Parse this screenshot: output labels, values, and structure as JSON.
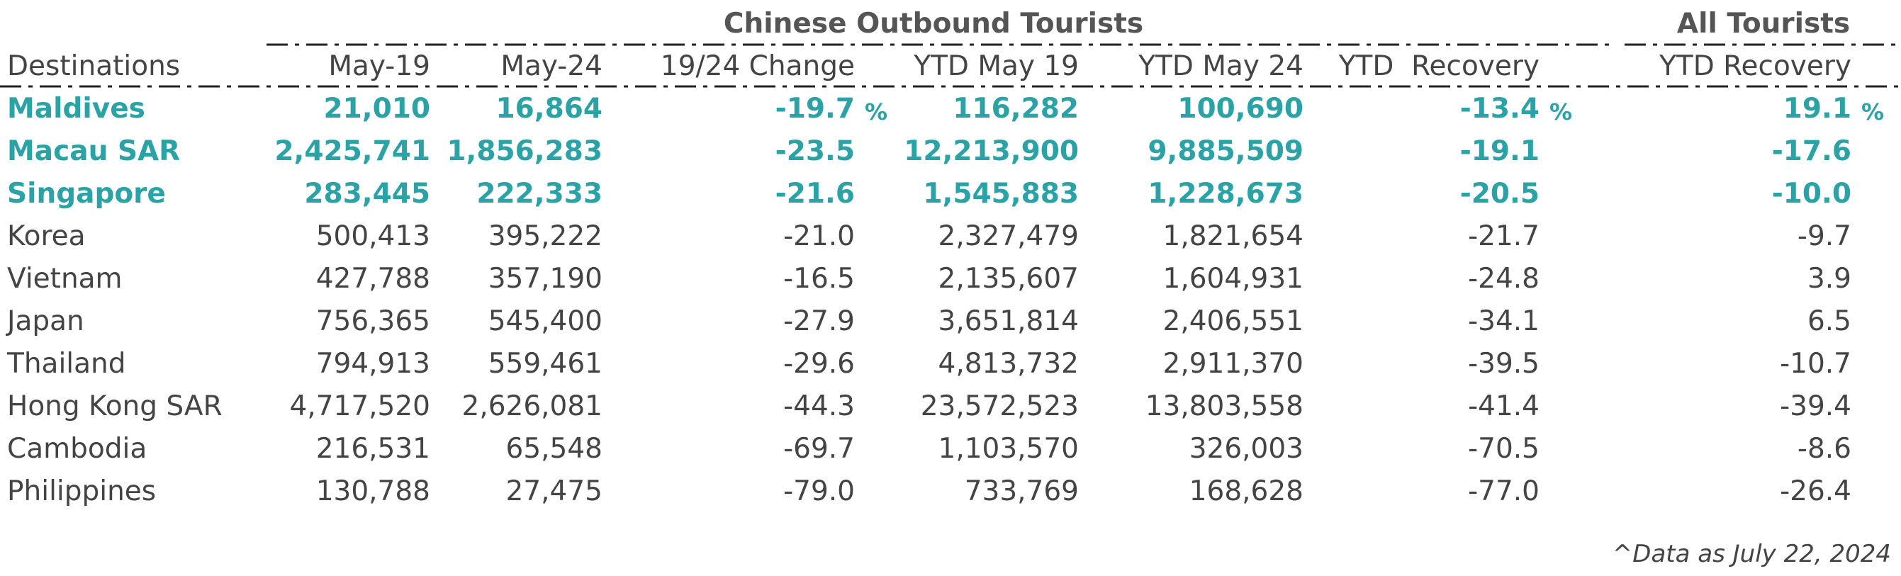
{
  "header": {
    "groups": [
      "Chinese Outbound Tourists",
      "All Tourists"
    ],
    "columns": [
      "Destinations",
      "May-19",
      "May-24",
      "19/24 Change",
      "YTD May 19",
      "YTD May 24",
      "YTD  Recovery",
      "YTD Recovery"
    ]
  },
  "table": {
    "rows": [
      {
        "highlight": true,
        "cells": [
          "Maldives",
          "21,010",
          "16,864",
          {
            "value": "-19.7",
            "unit": "%"
          },
          "116,282",
          "100,690",
          {
            "value": "-13.4",
            "unit": "%"
          },
          {
            "value": "19.1",
            "unit": "%"
          }
        ]
      },
      {
        "highlight": true,
        "cells": [
          "Macau SAR",
          "2,425,741",
          "1,856,283",
          "-23.5",
          "12,213,900",
          "9,885,509",
          "-19.1",
          "-17.6"
        ]
      },
      {
        "highlight": true,
        "cells": [
          "Singapore",
          "283,445",
          "222,333",
          "-21.6",
          "1,545,883",
          "1,228,673",
          "-20.5",
          "-10.0"
        ]
      },
      {
        "highlight": false,
        "cells": [
          "Korea",
          "500,413",
          "395,222",
          "-21.0",
          "2,327,479",
          "1,821,654",
          "-21.7",
          "-9.7"
        ]
      },
      {
        "highlight": false,
        "cells": [
          "Vietnam",
          "427,788",
          "357,190",
          "-16.5",
          "2,135,607",
          "1,604,931",
          "-24.8",
          "3.9"
        ]
      },
      {
        "highlight": false,
        "cells": [
          "Japan",
          "756,365",
          "545,400",
          "-27.9",
          "3,651,814",
          "2,406,551",
          "-34.1",
          "6.5"
        ]
      },
      {
        "highlight": false,
        "cells": [
          "Thailand",
          "794,913",
          "559,461",
          "-29.6",
          "4,813,732",
          "2,911,370",
          "-39.5",
          "-10.7"
        ]
      },
      {
        "highlight": false,
        "cells": [
          "Hong Kong SAR",
          "4,717,520",
          "2,626,081",
          "-44.3",
          "23,572,523",
          "13,803,558",
          "-41.4",
          "-39.4"
        ]
      },
      {
        "highlight": false,
        "cells": [
          "Cambodia",
          "216,531",
          "65,548",
          "-69.7",
          "1,103,570",
          "326,003",
          "-70.5",
          "-8.6"
        ]
      },
      {
        "highlight": false,
        "cells": [
          "Philippines",
          "130,788",
          "27,475",
          "-79.0",
          "733,769",
          "168,628",
          "-77.0",
          "-26.4"
        ]
      }
    ]
  },
  "footnote": "^Data as July 22, 2024"
}
